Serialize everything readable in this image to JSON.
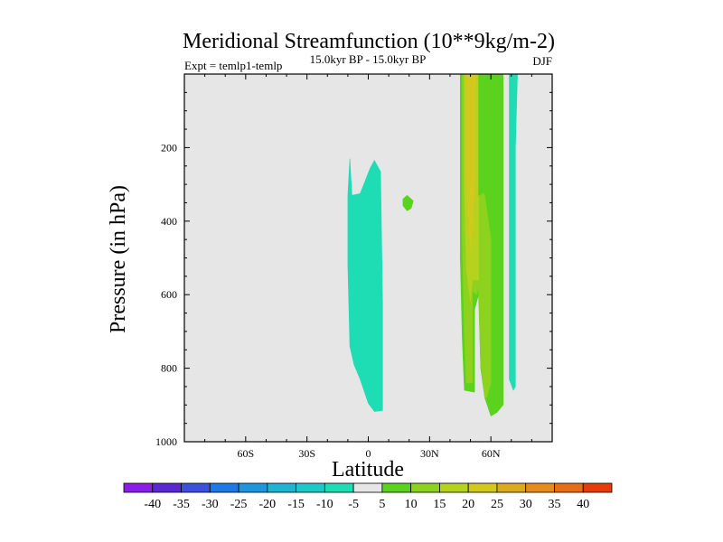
{
  "chart_data": {
    "type": "contour",
    "title": "Meridional Streamfunction (10**9kg/m-2)",
    "subtitle": "15.0kyr BP - 15.0kyr BP",
    "left_label": "Expt = temlp1-temlp",
    "right_label": "DJF",
    "xlabel": "Latitude",
    "ylabel": "Pressure (in hPa)",
    "xlim": [
      -90,
      90
    ],
    "ylim": [
      0,
      1000
    ],
    "y_inverted": true,
    "x_ticks": [
      {
        "value": -60,
        "label": "60S"
      },
      {
        "value": -30,
        "label": "30S"
      },
      {
        "value": 0,
        "label": "0"
      },
      {
        "value": 30,
        "label": "30N"
      },
      {
        "value": 60,
        "label": "60N"
      }
    ],
    "y_ticks": [
      {
        "value": 200,
        "label": "200"
      },
      {
        "value": 400,
        "label": "400"
      },
      {
        "value": 600,
        "label": "600"
      },
      {
        "value": 800,
        "label": "800"
      },
      {
        "value": 1000,
        "label": "1000"
      }
    ],
    "background_color": "#e6e6e6",
    "levels": [
      -40,
      -35,
      -30,
      -25,
      -20,
      -15,
      -10,
      -5,
      5,
      10,
      15,
      20,
      25,
      30,
      35,
      40
    ],
    "colorbar_labels": [
      "-40",
      "-35",
      "-30",
      "-25",
      "-20",
      "-15",
      "-10",
      "-5",
      "5",
      "10",
      "15",
      "20",
      "25",
      "30",
      "35",
      "40"
    ],
    "colorbar_colors": [
      "#8a1ee6",
      "#5a28d2",
      "#3c50dc",
      "#1e78e6",
      "#1e96dc",
      "#1eb4d2",
      "#1ec8c8",
      "#1edcb4",
      "#e6e6e6",
      "#5ad21e",
      "#8cd21e",
      "#b4d21e",
      "#d2c81e",
      "#dcaa1e",
      "#e68c1e",
      "#e66e14",
      "#e63c0a"
    ],
    "regions": [
      {
        "name": "neg-equatorial-cell",
        "color": "#1edcb4",
        "points": [
          [
            -9,
            230
          ],
          [
            -8,
            330
          ],
          [
            -4,
            325
          ],
          [
            1,
            255
          ],
          [
            3,
            235
          ],
          [
            6,
            265
          ],
          [
            7,
            620
          ],
          [
            7,
            900
          ],
          [
            7,
            915
          ],
          [
            3,
            918
          ],
          [
            0,
            895
          ],
          [
            -4,
            830
          ],
          [
            -7,
            790
          ],
          [
            -9,
            740
          ],
          [
            -10,
            520
          ],
          [
            -10,
            330
          ]
        ]
      },
      {
        "name": "pos-small-blob",
        "color": "#5ad21e",
        "points": [
          [
            17,
            340
          ],
          [
            19,
            330
          ],
          [
            22,
            345
          ],
          [
            21,
            365
          ],
          [
            19,
            372
          ],
          [
            17,
            358
          ]
        ]
      },
      {
        "name": "pos-midlat-cell-outer",
        "color": "#5ad21e",
        "points": [
          [
            45,
            0
          ],
          [
            66,
            0
          ],
          [
            66,
            560
          ],
          [
            66,
            900
          ],
          [
            63,
            920
          ],
          [
            60,
            930
          ],
          [
            57,
            880
          ],
          [
            55,
            800
          ],
          [
            54,
            600
          ],
          [
            52,
            640
          ],
          [
            52,
            865
          ],
          [
            47,
            860
          ],
          [
            46,
            720
          ],
          [
            45,
            500
          ]
        ]
      },
      {
        "name": "pos-midlat-cell-10",
        "color": "#8cd21e",
        "points": [
          [
            46,
            0
          ],
          [
            57,
            0
          ],
          [
            57,
            80
          ],
          [
            56,
            110
          ],
          [
            56,
            320
          ],
          [
            57,
            330
          ],
          [
            60,
            450
          ],
          [
            60,
            840
          ],
          [
            58,
            880
          ],
          [
            57,
            880
          ],
          [
            55,
            790
          ],
          [
            54,
            580
          ],
          [
            53,
            600
          ],
          [
            51,
            590
          ],
          [
            51,
            840
          ],
          [
            48,
            840
          ],
          [
            47,
            700
          ],
          [
            46,
            450
          ]
        ]
      },
      {
        "name": "pos-midlat-cell-15",
        "color": "#b4d21e",
        "points": [
          [
            47,
            0
          ],
          [
            55,
            0
          ],
          [
            54,
            60
          ],
          [
            54,
            150
          ],
          [
            54,
            560
          ],
          [
            51,
            560
          ],
          [
            50,
            620
          ],
          [
            48,
            530
          ],
          [
            47,
            300
          ]
        ]
      },
      {
        "name": "pos-midlat-cell-20",
        "color": "#d2c81e",
        "points": [
          [
            48,
            0
          ],
          [
            53,
            0
          ],
          [
            52,
            60
          ],
          [
            52,
            100
          ],
          [
            52,
            300
          ],
          [
            51,
            420
          ],
          [
            50,
            480
          ],
          [
            49,
            420
          ],
          [
            48,
            250
          ]
        ]
      },
      {
        "name": "pos-midlat-core",
        "color": "#5ad21e",
        "points": [
          [
            54,
            0
          ],
          [
            57,
            0
          ],
          [
            57,
            320
          ],
          [
            54,
            330
          ],
          [
            54,
            150
          ]
        ]
      },
      {
        "name": "neg-highlat-cell",
        "color": "#1edcb4",
        "points": [
          [
            69,
            0
          ],
          [
            73,
            0
          ],
          [
            72,
            200
          ],
          [
            72,
            580
          ],
          [
            72,
            850
          ],
          [
            71,
            860
          ],
          [
            69,
            830
          ],
          [
            69,
            500
          ]
        ]
      }
    ]
  }
}
